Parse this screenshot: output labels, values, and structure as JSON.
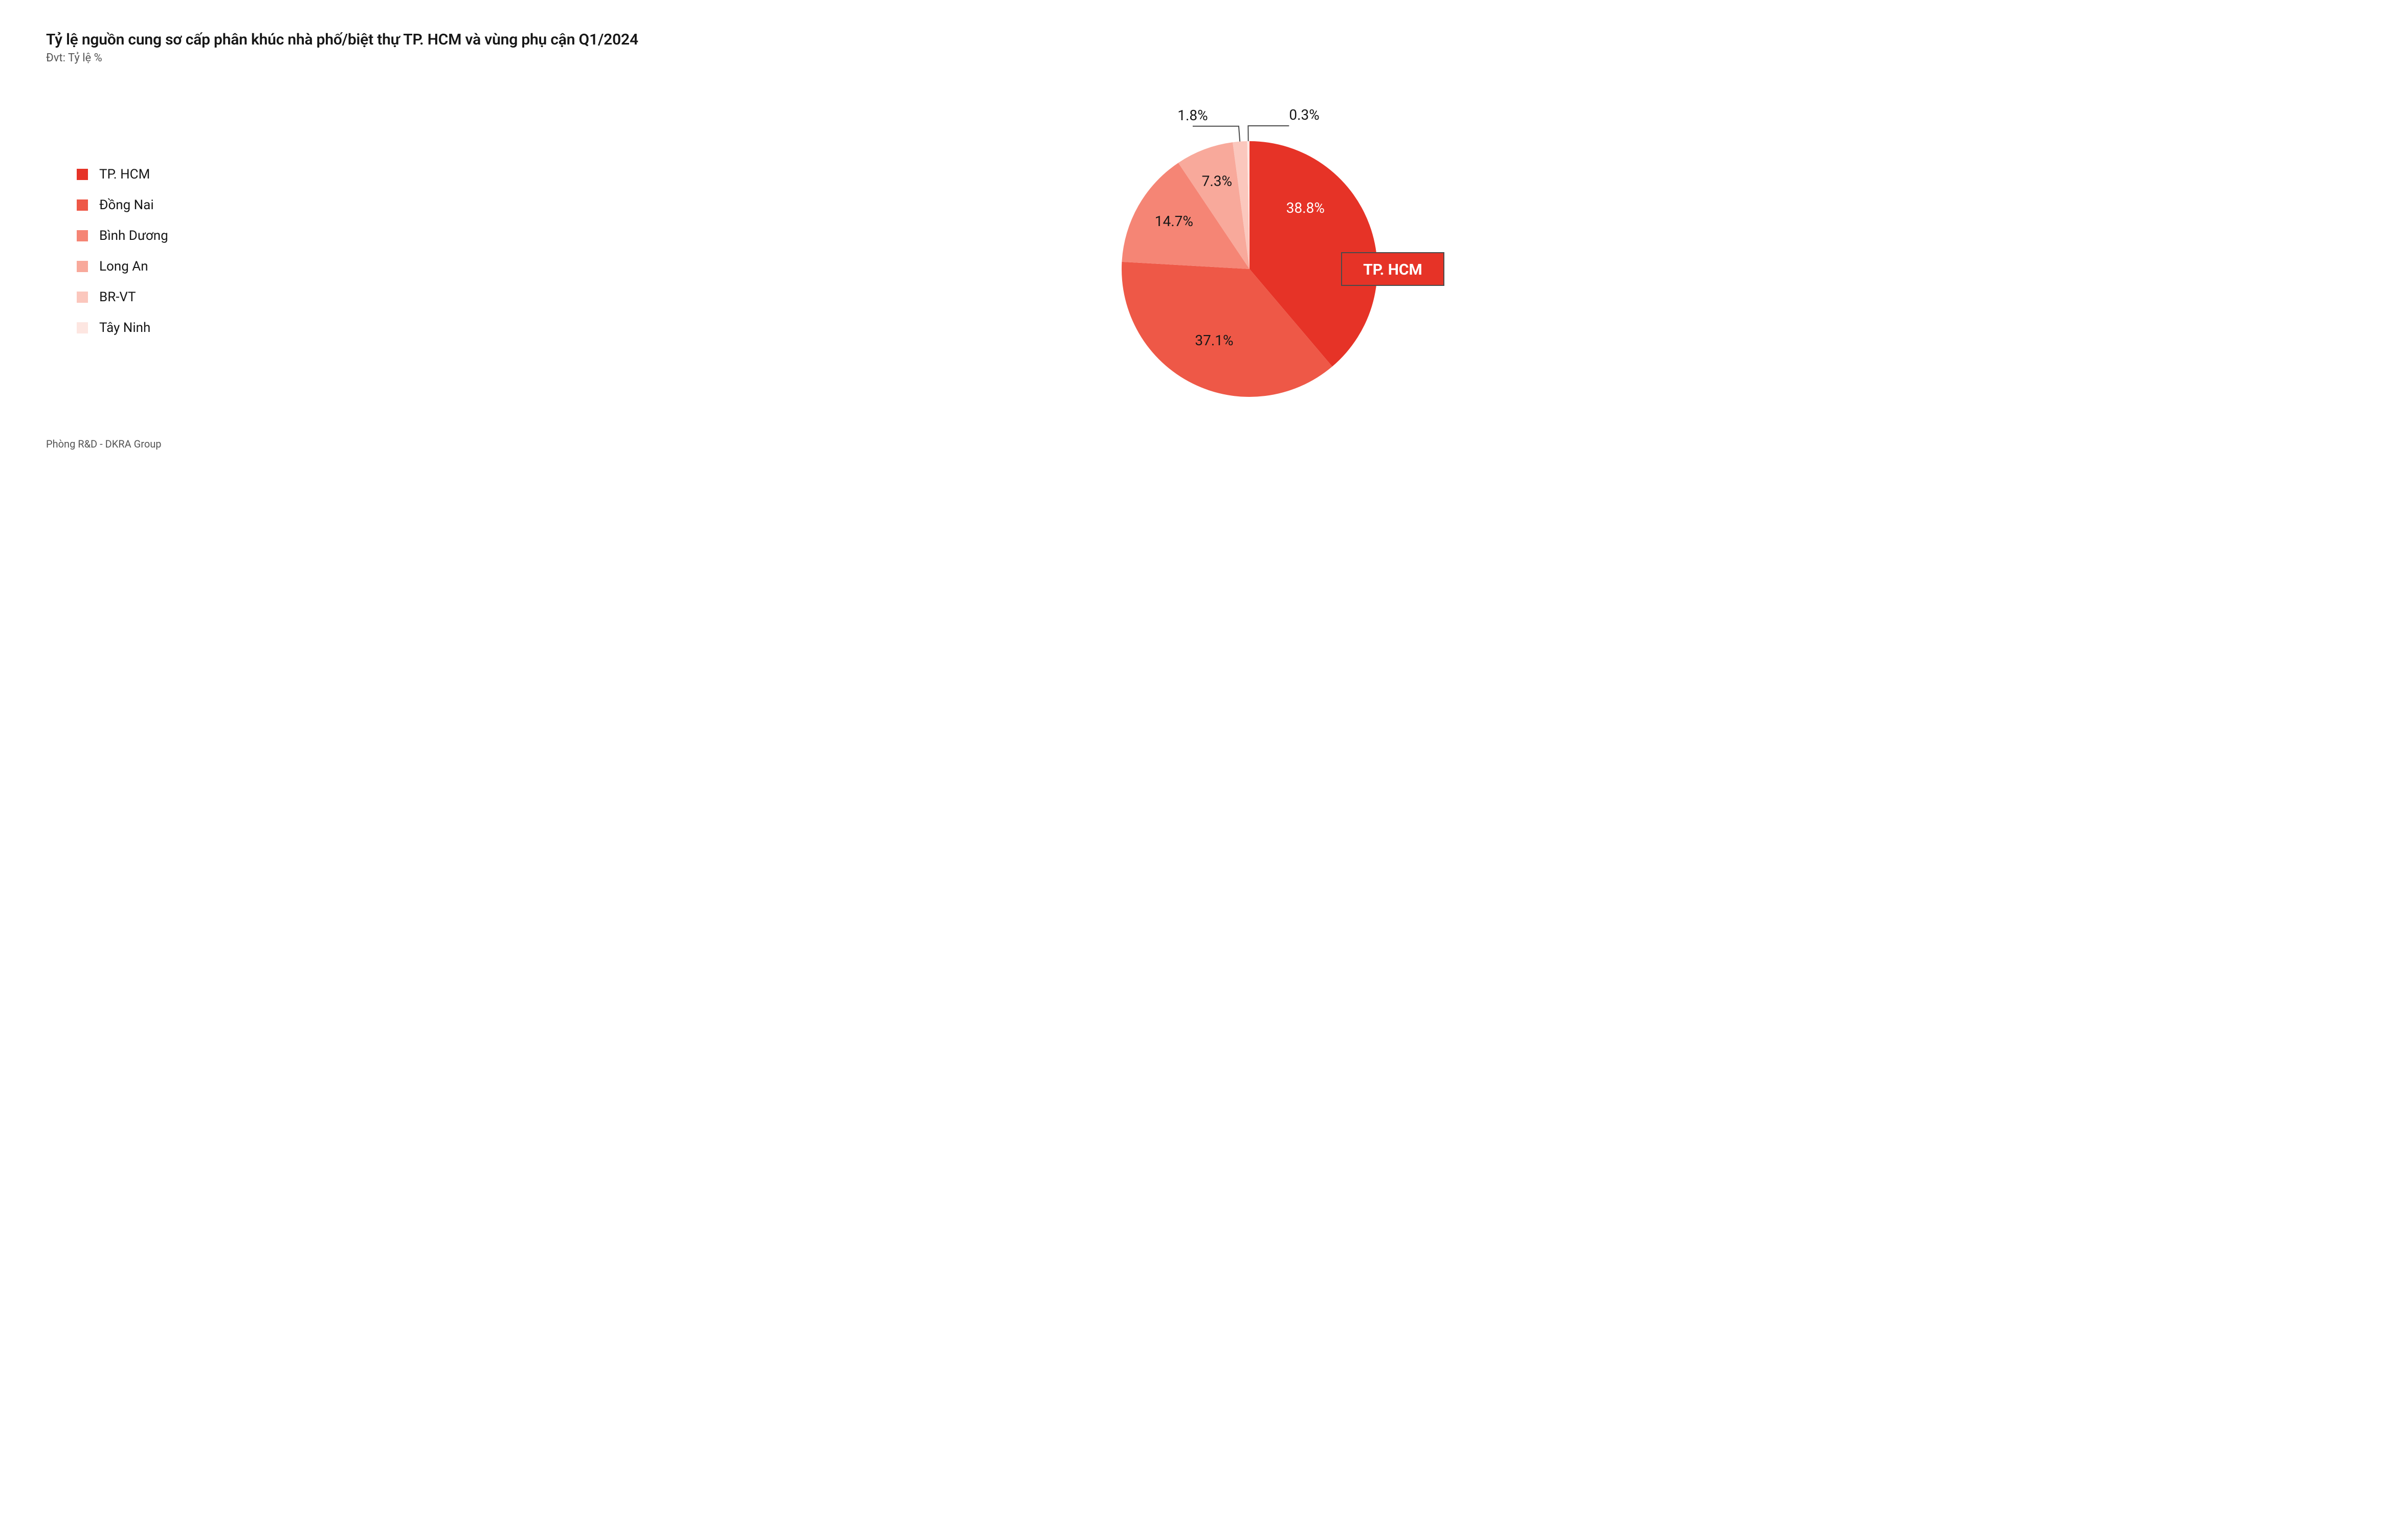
{
  "title": "Tỷ lệ nguồn cung sơ cấp phân khúc nhà phố/biệt thự TP. HCM và vùng phụ cận Q1/2024",
  "subtitle": "Đvt: Tỷ lệ %",
  "source": "Phòng R&D - DKRA Group",
  "chart": {
    "type": "pie",
    "background_color": "#ffffff",
    "radius": 250,
    "slices": [
      {
        "label": "TP. HCM",
        "value": 38.8,
        "value_label": "38.8%",
        "color": "#e63327"
      },
      {
        "label": "Đồng Nai",
        "value": 37.1,
        "value_label": "37.1%",
        "color": "#ee5847"
      },
      {
        "label": "Bình Dương",
        "value": 14.7,
        "value_label": "14.7%",
        "color": "#f58575"
      },
      {
        "label": "Long An",
        "value": 7.3,
        "value_label": "7.3%",
        "color": "#f8a99b"
      },
      {
        "label": "BR-VT",
        "value": 1.8,
        "value_label": "1.8%",
        "color": "#fbc7bd"
      },
      {
        "label": "Tây Ninh",
        "value": 0.3,
        "value_label": "0.3%",
        "color": "#fde6e1"
      }
    ],
    "callout": {
      "slice_index": 0,
      "text": "TP. HCM",
      "fill": "#e63327",
      "stroke": "#4a4a4a",
      "text_color": "#ffffff",
      "font_size": 30,
      "font_weight": 700
    },
    "label_fontsize": 28,
    "title_fontsize": 30,
    "subtitle_fontsize": 22,
    "legend_fontsize": 26,
    "source_fontsize": 20,
    "text_color": "#171717",
    "subtext_color": "#555555"
  }
}
